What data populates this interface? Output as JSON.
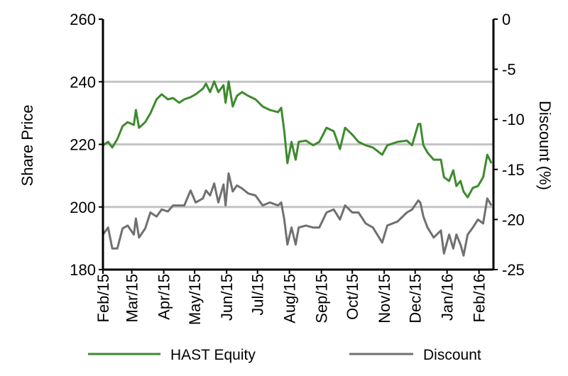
{
  "chart_data": {
    "type": "line",
    "title": "",
    "xlabel": "",
    "ylabel": "Share Price",
    "y2label": "Discount (%)",
    "xlim": [
      "2015-02-01",
      "2016-02-15"
    ],
    "ylim": [
      180,
      260
    ],
    "y2lim": [
      -25,
      0
    ],
    "grid": "horizontal",
    "legend": "bottom",
    "x_ticks": [
      "Feb/15",
      "Mar/15",
      "Apr/15",
      "May/15",
      "Jun/15",
      "Jul/15",
      "Aug/15",
      "Sep/15",
      "Oct/15",
      "Nov/15",
      "Dec/15",
      "Jan/16",
      "Feb/16"
    ],
    "y_ticks": [
      180,
      200,
      220,
      240,
      260
    ],
    "y2_ticks": [
      -25,
      -20,
      -15,
      -10,
      -5,
      0
    ],
    "x": [
      "2015-02-01",
      "2015-02-06",
      "2015-02-10",
      "2015-02-15",
      "2015-02-20",
      "2015-02-25",
      "2015-03-03",
      "2015-03-05",
      "2015-03-08",
      "2015-03-14",
      "2015-03-19",
      "2015-03-25",
      "2015-03-30",
      "2015-04-05",
      "2015-04-10",
      "2015-04-16",
      "2015-04-21",
      "2015-04-27",
      "2015-05-02",
      "2015-05-09",
      "2015-05-12",
      "2015-05-16",
      "2015-05-20",
      "2015-05-24",
      "2015-05-29",
      "2015-05-31",
      "2015-06-03",
      "2015-06-07",
      "2015-06-11",
      "2015-06-16",
      "2015-06-22",
      "2015-06-29",
      "2015-07-06",
      "2015-07-13",
      "2015-07-21",
      "2015-07-24",
      "2015-07-27",
      "2015-07-30",
      "2015-08-03",
      "2015-08-07",
      "2015-08-10",
      "2015-08-17",
      "2015-08-24",
      "2015-08-30",
      "2015-09-06",
      "2015-09-13",
      "2015-09-19",
      "2015-09-24",
      "2015-10-01",
      "2015-10-07",
      "2015-10-14",
      "2015-10-21",
      "2015-10-30",
      "2015-11-04",
      "2015-11-14",
      "2015-11-23",
      "2015-11-28",
      "2015-12-04",
      "2015-12-06",
      "2015-12-09",
      "2015-12-13",
      "2015-12-19",
      "2015-12-26",
      "2015-12-29",
      "2016-01-03",
      "2016-01-07",
      "2016-01-10",
      "2016-01-14",
      "2016-01-17",
      "2016-01-21",
      "2016-01-26",
      "2016-01-31",
      "2016-02-05",
      "2016-02-09",
      "2016-02-13"
    ],
    "series": [
      {
        "name": "HAST Equity",
        "axis": "left",
        "color": "#3e8a2e",
        "values": [
          219.7,
          220.8,
          219.0,
          221.7,
          225.8,
          227.1,
          226.2,
          231.0,
          225.3,
          227.1,
          229.9,
          234.4,
          236.0,
          234.4,
          234.8,
          233.3,
          234.4,
          235.1,
          236.0,
          237.8,
          239.4,
          236.7,
          240.1,
          236.7,
          238.9,
          233.3,
          240.1,
          232.1,
          235.5,
          236.7,
          235.5,
          234.4,
          232.1,
          231.0,
          230.3,
          231.7,
          224.2,
          214.0,
          220.8,
          215.1,
          220.8,
          221.2,
          219.7,
          220.8,
          225.3,
          224.2,
          218.5,
          225.3,
          223.1,
          220.8,
          219.7,
          219.0,
          216.7,
          219.7,
          220.8,
          221.2,
          219.7,
          226.5,
          226.5,
          219.7,
          217.4,
          215.1,
          215.1,
          209.5,
          208.3,
          211.7,
          206.7,
          208.3,
          204.9,
          203.1,
          206.1,
          206.7,
          209.5,
          216.7,
          214.0
        ]
      },
      {
        "name": "Discount",
        "axis": "right",
        "color": "#707070",
        "values": [
          -21.5,
          -20.8,
          -22.9,
          -22.9,
          -20.9,
          -20.6,
          -21.5,
          -19.9,
          -21.8,
          -20.9,
          -19.3,
          -19.7,
          -19.0,
          -19.2,
          -18.6,
          -18.6,
          -18.6,
          -17.1,
          -18.3,
          -17.9,
          -17.1,
          -17.6,
          -16.4,
          -18.3,
          -16.5,
          -18.6,
          -15.4,
          -17.2,
          -16.6,
          -16.9,
          -17.4,
          -17.6,
          -18.6,
          -18.3,
          -18.6,
          -18.3,
          -20.0,
          -22.5,
          -20.8,
          -22.5,
          -20.8,
          -20.6,
          -20.8,
          -20.8,
          -19.3,
          -19.0,
          -20.0,
          -18.6,
          -19.3,
          -19.3,
          -20.4,
          -20.8,
          -22.3,
          -20.6,
          -20.2,
          -19.3,
          -19.0,
          -18.1,
          -18.3,
          -19.7,
          -20.8,
          -21.8,
          -21.1,
          -23.4,
          -21.5,
          -22.9,
          -21.5,
          -22.5,
          -23.6,
          -21.5,
          -20.8,
          -20.0,
          -20.4,
          -17.9,
          -18.6
        ]
      }
    ]
  }
}
